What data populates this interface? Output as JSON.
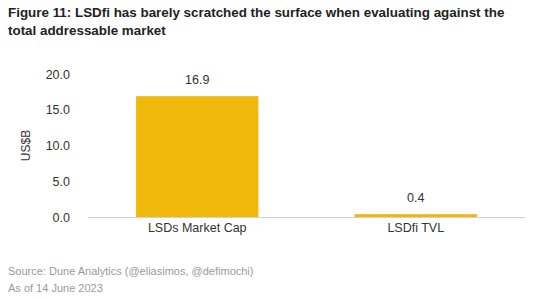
{
  "chart_data": {
    "type": "bar",
    "title": "Figure 11: LSDfi has barely scratched the surface when evaluating against the total addressable market",
    "y_label": "US$B",
    "categories": [
      "LSDs Market Cap",
      "LSDfi TVL"
    ],
    "values": [
      16.9,
      0.4
    ],
    "color": "#f0b90b",
    "ylim": [
      0,
      20
    ],
    "yticks": [
      {
        "value": 0,
        "label": "0.0"
      },
      {
        "value": 5,
        "label": "5.0"
      },
      {
        "value": 10,
        "label": "10.0"
      },
      {
        "value": 15,
        "label": "15.0"
      },
      {
        "value": 20,
        "label": "20.0"
      }
    ],
    "grid": false,
    "data_labels": true,
    "annotations": [
      "Source: Dune Analytics (@eliasimos, @defimochi)",
      "As of 14 June 2023"
    ]
  }
}
